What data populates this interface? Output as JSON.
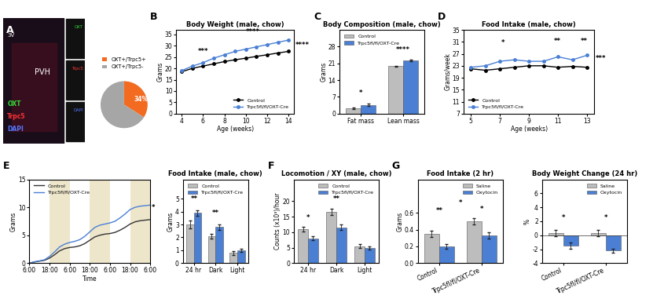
{
  "chart_data": [
    {
      "type": "image",
      "panel": "A",
      "texts": [
        "3V",
        "PVH",
        "OXT",
        "Trpc5",
        "DAPI"
      ],
      "colors": [
        "#ffffff",
        "#ffffff",
        "#33dd33",
        "#ff3333",
        "#5577ff"
      ]
    },
    {
      "type": "pie",
      "categories": [
        "OXT+/Trpc5+",
        "OXT+/Trpc5-"
      ],
      "values": [
        34,
        66
      ],
      "value_labels": [
        "34%",
        null
      ],
      "colors": [
        "#f26b21",
        "#a6a6a6"
      ],
      "legend": "lower center"
    },
    {
      "type": "line",
      "panel": "B",
      "title": "Body Weight (male, chow)",
      "x_label": "Age (weeks)",
      "y_label": "Grams",
      "x": [
        4,
        5,
        6,
        7,
        8,
        9,
        10,
        11,
        12,
        13,
        14
      ],
      "series": [
        {
          "name": "Control",
          "color": "#000000",
          "marker": "o",
          "line_style": "solid",
          "values": [
            18.5,
            20,
            21,
            22,
            23,
            23.8,
            24.5,
            25.3,
            26,
            26.8,
            27.5
          ]
        },
        {
          "name": "Trpc5fl/fl/OXT-Cre",
          "color": "#4a7fd4",
          "marker": "o",
          "line_style": "solid",
          "values": [
            19,
            21,
            22.5,
            24.5,
            26,
            27.5,
            28.5,
            29.5,
            30.5,
            31.5,
            32.5
          ]
        }
      ],
      "xlim": [
        3.5,
        14.5
      ],
      "xticks": [
        4,
        6,
        8,
        10,
        12,
        14
      ],
      "ylim": [
        0,
        37
      ],
      "yticks": [
        0,
        5,
        10,
        15,
        20,
        25,
        30,
        35
      ],
      "legend": "lower right",
      "annotations": [
        "***",
        "****",
        "****"
      ]
    },
    {
      "type": "bar",
      "panel": "C",
      "title": "Body Composition (male, chow)",
      "y_label": "Grams",
      "categories": [
        "Fat mass",
        "Lean mass"
      ],
      "series": [
        {
          "name": "Control",
          "color": "#bdbdbd",
          "values": [
            2.3,
            19.8
          ],
          "errors": [
            0.3,
            0.3
          ]
        },
        {
          "name": "Trpc5fl/fl/OXT-Cre",
          "color": "#4a7fd4",
          "values": [
            3.6,
            22.2
          ],
          "errors": [
            0.5,
            0.4
          ]
        }
      ],
      "ylim": [
        0,
        35
      ],
      "yticks": [
        0,
        7,
        14,
        21,
        28
      ],
      "legend": "upper left",
      "annotations": [
        "*",
        "****"
      ]
    },
    {
      "type": "line",
      "panel": "D",
      "title": "Food Intake (male, chow)",
      "x_label": "Age (weeks)",
      "y_label": "Grams/week",
      "x": [
        5,
        6,
        7,
        8,
        9,
        10,
        11,
        12,
        13
      ],
      "series": [
        {
          "name": "Control",
          "color": "#000000",
          "marker": "o",
          "line_style": "solid",
          "values": [
            22,
            21.5,
            22,
            22.5,
            23,
            23,
            22.5,
            22.8,
            22.5
          ]
        },
        {
          "name": "Trpc5fl/fl/OXT-Cre",
          "color": "#4a7fd4",
          "marker": "o",
          "line_style": "solid",
          "values": [
            22.5,
            23,
            24.5,
            25,
            24.5,
            24.5,
            26,
            25,
            26.5
          ]
        }
      ],
      "xlim": [
        4.5,
        13.5
      ],
      "xticks": [
        5,
        7,
        9,
        11,
        13
      ],
      "ylim": [
        7,
        35
      ],
      "yticks": [
        7,
        11,
        15,
        19,
        23,
        27,
        31,
        35
      ],
      "legend": "lower left",
      "annotations": [
        "*",
        "**",
        "**",
        "***"
      ]
    },
    {
      "type": "line",
      "panel": "E",
      "x_label": "Time",
      "y_label": "Grams",
      "x": [
        0,
        3,
        6,
        9,
        12,
        15,
        18,
        21,
        24,
        27,
        30,
        33,
        36,
        39,
        42,
        45,
        48,
        51,
        54,
        57,
        60,
        63,
        66,
        69,
        72
      ],
      "series": [
        {
          "name": "Control",
          "color": "#333333",
          "marker": "none",
          "line_style": "solid",
          "values": [
            0,
            0.2,
            0.35,
            0.5,
            0.9,
            1.5,
            2.2,
            2.6,
            2.8,
            2.9,
            3.1,
            3.5,
            4.1,
            4.7,
            5.0,
            5.2,
            5.3,
            5.5,
            5.9,
            6.4,
            7.0,
            7.4,
            7.6,
            7.7,
            7.8
          ]
        },
        {
          "name": "Trpc5fl/fl/OXT-Cre",
          "color": "#4a7fd4",
          "marker": "none",
          "line_style": "solid",
          "values": [
            0,
            0.25,
            0.4,
            0.6,
            1.2,
            2.0,
            2.9,
            3.4,
            3.7,
            3.9,
            4.2,
            4.8,
            5.6,
            6.4,
            6.8,
            7.0,
            7.2,
            7.5,
            8.1,
            8.8,
            9.6,
            10.0,
            10.2,
            10.3,
            10.4
          ]
        }
      ],
      "dark_periods": [
        [
          12,
          24
        ],
        [
          36,
          48
        ],
        [
          60,
          72
        ]
      ],
      "xlim": [
        0,
        72
      ],
      "xticks": [
        {
          "value": 0,
          "label": "6:00"
        },
        {
          "value": 12,
          "label": "18:00"
        },
        {
          "value": 24,
          "label": "6:00"
        },
        {
          "value": 36,
          "label": "18:00"
        },
        {
          "value": 48,
          "label": "6:00"
        },
        {
          "value": 60,
          "label": "18:00"
        },
        {
          "value": 72,
          "label": "6:00"
        }
      ],
      "ylim": [
        0,
        15
      ],
      "yticks": [
        0,
        5,
        10,
        15
      ],
      "legend": "upper left",
      "annotations": [
        "*"
      ]
    },
    {
      "type": "bar",
      "title": "Food Intake (male, chow)",
      "y_label": "Grams",
      "categories": [
        "24 hr",
        "Dark",
        "Light"
      ],
      "series": [
        {
          "name": "Control",
          "color": "#bdbdbd",
          "values": [
            3.0,
            2.1,
            0.8
          ],
          "errors": [
            0.3,
            0.2,
            0.15
          ]
        },
        {
          "name": "Trpc5fl/fl/OXT-Cre",
          "color": "#4a7fd4",
          "values": [
            3.9,
            2.8,
            1.0
          ],
          "errors": [
            0.2,
            0.2,
            0.1
          ]
        }
      ],
      "ylim": [
        0,
        6.5
      ],
      "yticks": [
        0,
        1,
        2,
        3,
        4,
        5
      ],
      "legend": "upper right",
      "annotations": [
        "**",
        "**"
      ]
    },
    {
      "type": "bar",
      "panel": "F",
      "title": "Locomotion / XY (male, chow)",
      "y_label": "Counts (x10³)/hour",
      "categories": [
        "24 hr",
        "Dark",
        "Light"
      ],
      "series": [
        {
          "name": "Control",
          "color": "#bdbdbd",
          "values": [
            11,
            16.5,
            5.5
          ],
          "errors": [
            0.8,
            1.0,
            0.6
          ]
        },
        {
          "name": "Trpc5fl/fl/OXT-Cre",
          "color": "#4a7fd4",
          "values": [
            8,
            11.5,
            5
          ],
          "errors": [
            0.7,
            0.9,
            0.5
          ]
        }
      ],
      "ylim": [
        0,
        27
      ],
      "yticks": [
        0,
        5,
        10,
        15,
        20
      ],
      "legend": "upper right",
      "annotations": [
        "*",
        "**"
      ]
    },
    {
      "type": "bar",
      "panel": "G",
      "title": "Food Intake (2 hr)",
      "y_label": "Grams",
      "categories": [
        "Control",
        "Trpc5fl/fl/OXT-Cre"
      ],
      "series": [
        {
          "name": "Saline",
          "color": "#bdbdbd",
          "values": [
            0.35,
            0.5
          ],
          "errors": [
            0.04,
            0.04
          ]
        },
        {
          "name": "Oxytocin",
          "color": "#4a7fd4",
          "values": [
            0.2,
            0.33
          ],
          "errors": [
            0.03,
            0.04
          ]
        }
      ],
      "ylim": [
        0,
        1.0
      ],
      "yticks": [
        {
          "value": 0,
          "label": "0.0"
        },
        0.2,
        0.4,
        0.6
      ],
      "legend": "upper right",
      "annotations": [
        "**",
        "*",
        "*"
      ]
    },
    {
      "type": "bar",
      "title": "Body Weight Change (24 hr)",
      "y_label": "%",
      "categories": [
        "Control",
        "Trpc5fl/fl/OXT-Cre"
      ],
      "series": [
        {
          "name": "Saline",
          "color": "#bdbdbd",
          "values": [
            0.3,
            0.3
          ],
          "errors": [
            0.5,
            0.5
          ]
        },
        {
          "name": "Oxytocin",
          "color": "#4a7fd4",
          "values": [
            -1.5,
            -2.2
          ],
          "errors": [
            0.4,
            0.3
          ]
        }
      ],
      "ylim": [
        -4,
        8
      ],
      "yticks": [
        -4,
        -2,
        0,
        2,
        4,
        6
      ],
      "legend": "upper right",
      "annotations": [
        "*",
        "*"
      ]
    }
  ]
}
